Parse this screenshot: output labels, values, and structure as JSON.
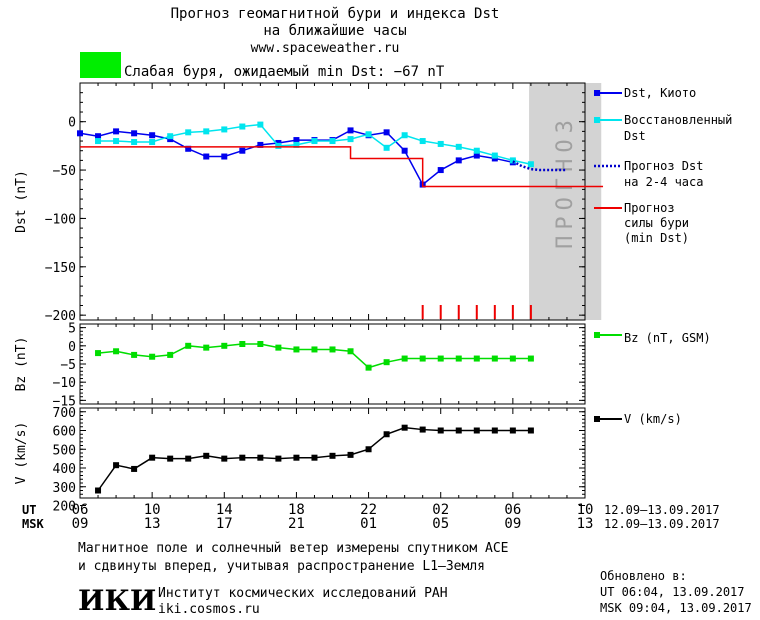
{
  "header": {
    "title_line1": "Прогноз геомагнитной бури и индекса Dst",
    "title_line2": "на ближайшие часы",
    "url": "www.spaceweather.ru",
    "status_color": "#00ee00",
    "status_text": "Слабая буря, ожидаемый min Dst: −67 nT"
  },
  "chart_data": [
    {
      "type": "line",
      "panel": "dst",
      "ylabel": "Dst (nT)",
      "ylim": [
        -205,
        40
      ],
      "yticks": [
        0,
        -50,
        -100,
        -150,
        -200
      ],
      "ytick_labels": [
        "0",
        "−50",
        "−100",
        "−150",
        "−200"
      ],
      "forecast_label": "ПРОГНОЗ",
      "forecast_range": [
        30.9,
        34.9
      ],
      "series": [
        {
          "name": "Dst, Киото",
          "color": "#0000ee",
          "marker": "square",
          "x": [
            6,
            7,
            8,
            9,
            10,
            11,
            12,
            13,
            14,
            15,
            16,
            17,
            18,
            19,
            20,
            21,
            22,
            23,
            24,
            25,
            26,
            27,
            28,
            29,
            30
          ],
          "y": [
            -12,
            -15,
            -10,
            -12,
            -14,
            -18,
            -28,
            -36,
            -36,
            -30,
            -24,
            -22,
            -19,
            -19,
            -19,
            -9,
            -14,
            -11,
            -30,
            -65,
            -50,
            -40,
            -35,
            -38,
            -42
          ]
        },
        {
          "name": "Восстановленный Dst",
          "color": "#00e5ee",
          "marker": "square",
          "x": [
            7,
            8,
            9,
            10,
            11,
            12,
            13,
            14,
            15,
            16,
            17,
            18,
            19,
            20,
            21,
            22,
            23,
            24,
            25,
            26,
            27,
            28,
            29,
            30,
            31
          ],
          "y": [
            -20,
            -20,
            -21,
            -21,
            -15,
            -11,
            -10,
            -8,
            -5,
            -3,
            -25,
            -24,
            -20,
            -20,
            -18,
            -13,
            -27,
            -14,
            -20,
            -23,
            -26,
            -30,
            -35,
            -40,
            -44
          ]
        },
        {
          "name": "Прогноз Dst на 2-4 часа",
          "color": "#0000cc",
          "style": "dotted",
          "x": [
            30.0,
            30.5,
            31.0,
            31.5,
            32.0,
            32.5,
            33.0
          ],
          "y": [
            -41,
            -46,
            -49,
            -50,
            -50,
            -50,
            -50
          ]
        },
        {
          "name": "Прогноз силы бури (min Dst)",
          "color": "#ee0000",
          "style": "step",
          "x": [
            6,
            20,
            21,
            23,
            24,
            25,
            35
          ],
          "y": [
            -26,
            -26,
            -38,
            -38,
            -38,
            -67,
            -67
          ]
        }
      ],
      "storm_marks_x": [
        25,
        26,
        27,
        28,
        29,
        30,
        31
      ]
    },
    {
      "type": "line",
      "panel": "bz",
      "ylabel": "Bz (nT)",
      "ylim": [
        -16,
        6
      ],
      "yticks": [
        5,
        0,
        -5,
        -10,
        -15
      ],
      "ytick_labels": [
        "5",
        "0",
        "−5",
        "−10",
        "−15"
      ],
      "series": [
        {
          "name": "Bz (nT, GSM)",
          "color": "#00dd00",
          "marker": "square",
          "x": [
            7,
            8,
            9,
            10,
            11,
            12,
            13,
            14,
            15,
            16,
            17,
            18,
            19,
            20,
            21,
            22,
            23,
            24,
            25,
            26,
            27,
            28,
            29,
            30,
            31
          ],
          "y": [
            -2,
            -1.5,
            -2.5,
            -3,
            -2.5,
            0,
            -0.5,
            0,
            0.5,
            0.5,
            -0.5,
            -1,
            -1,
            -1,
            -1.5,
            -6,
            -4.5,
            -3.5,
            -3.5,
            -3.5,
            -3.5,
            -3.5,
            -3.5,
            -3.5,
            -3.5
          ]
        }
      ]
    },
    {
      "type": "line",
      "panel": "v",
      "ylabel": "V (km/s)",
      "ylim": [
        240,
        720
      ],
      "yticks": [
        700,
        600,
        500,
        400,
        300,
        200
      ],
      "ytick_labels": [
        "700",
        "600",
        "500",
        "400",
        "300",
        "200"
      ],
      "series": [
        {
          "name": "V (km/s)",
          "color": "#000000",
          "marker": "square",
          "x": [
            7,
            8,
            9,
            10,
            11,
            12,
            13,
            14,
            15,
            16,
            17,
            18,
            19,
            20,
            21,
            22,
            23,
            24,
            25,
            26,
            27,
            28,
            29,
            30,
            31
          ],
          "y": [
            280,
            415,
            395,
            455,
            450,
            450,
            465,
            450,
            455,
            455,
            450,
            455,
            455,
            465,
            470,
            500,
            580,
            615,
            605,
            600,
            600,
            600,
            600,
            600,
            600
          ]
        }
      ]
    }
  ],
  "x_axis": {
    "ut_label": "UT",
    "msk_label": "MSK",
    "ut_ticks": [
      "06",
      "10",
      "14",
      "18",
      "22",
      "02",
      "06",
      "10"
    ],
    "msk_ticks": [
      "09",
      "13",
      "17",
      "21",
      "01",
      "05",
      "09",
      "13"
    ],
    "ut_range": "12.09–13.09.2017",
    "msk_range": "12.09–13.09.2017"
  },
  "footer": {
    "note_line1": "Магнитное поле и солнечный ветер измерены спутником ACE",
    "note_line2": "и сдвинуты вперед, учитывая распространение L1–Земля",
    "logo_text": "ИКИ",
    "institute": "Институт космических исследований РАН",
    "site": "iki.cosmos.ru",
    "updated_label": "Обновлено в:",
    "updated_ut": "UT  06:04, 13.09.2017",
    "updated_msk": "MSK 09:04, 13.09.2017"
  },
  "legend": {
    "dst_kyoto": "Dst, Киото",
    "restored_1": "Восстановленный",
    "restored_2": "Dst",
    "forecast_1": "Прогноз Dst",
    "forecast_2": "на 2-4 часа",
    "storm_1": "Прогноз",
    "storm_2": "силы бури",
    "storm_3": "(min Dst)",
    "bz": "Bz (nT, GSM)",
    "v": "V (km/s)"
  }
}
